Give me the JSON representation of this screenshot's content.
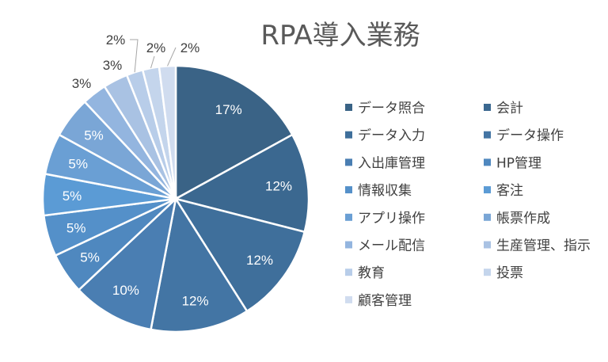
{
  "chart_data": {
    "type": "pie",
    "title": "RPA導入業務",
    "legend_position": "right",
    "slices": [
      {
        "label": "データ照合",
        "value": 17,
        "display": "17%",
        "color": "#3a6386"
      },
      {
        "label": "会計",
        "value": 12,
        "display": "12%",
        "color": "#3b6890"
      },
      {
        "label": "データ入力",
        "value": 12,
        "display": "12%",
        "color": "#3f6f9b"
      },
      {
        "label": "データ操作",
        "value": 12,
        "display": "12%",
        "color": "#4375a4"
      },
      {
        "label": "入出庫管理",
        "value": 10,
        "display": "10%",
        "color": "#4a7eb2"
      },
      {
        "label": "HP管理",
        "value": 5,
        "display": "5%",
        "color": "#4f88bf"
      },
      {
        "label": "情報収集",
        "value": 5,
        "display": "5%",
        "color": "#5490c9"
      },
      {
        "label": "客注",
        "value": 5,
        "display": "5%",
        "color": "#5b9bd5"
      },
      {
        "label": "アプリ操作",
        "value": 5,
        "display": "5%",
        "color": "#6a9fd4"
      },
      {
        "label": "帳票作成",
        "value": 5,
        "display": "5%",
        "color": "#7aa6d6"
      },
      {
        "label": "メール配信",
        "value": 3,
        "display": "3%",
        "color": "#93b5df"
      },
      {
        "label": "生産管理、指示",
        "value": 3,
        "display": "3%",
        "color": "#a9c2e3"
      },
      {
        "label": "教育",
        "value": 2,
        "display": "2%",
        "color": "#b8cde9"
      },
      {
        "label": "投票",
        "value": 2,
        "display": "2%",
        "color": "#c4d5ec"
      },
      {
        "label": "顧客管理",
        "value": 2,
        "display": "2%",
        "color": "#d0dcef"
      }
    ]
  }
}
